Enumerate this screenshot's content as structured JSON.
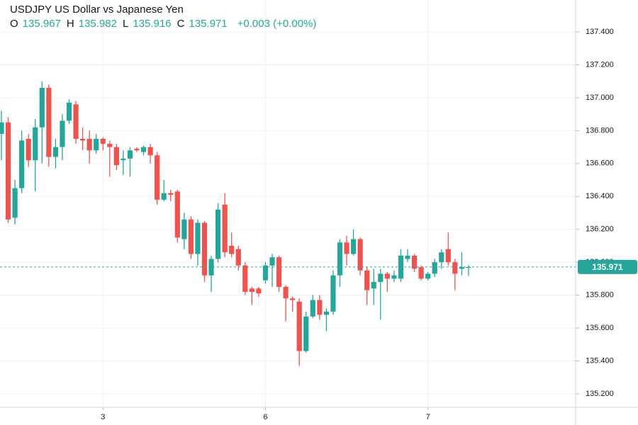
{
  "chart_data": {
    "type": "candlestick",
    "title": "USDJPY US Dollar vs Japanese Yen",
    "ohlc_labels": [
      "O",
      "H",
      "L",
      "C"
    ],
    "change_label": "+0.003 (+0.00%)",
    "categories": [
      null,
      null,
      null,
      null,
      null,
      null,
      null,
      null,
      null,
      null,
      null,
      null,
      null,
      null,
      null,
      "3",
      null,
      null,
      null,
      null,
      null,
      null,
      null,
      null,
      null,
      null,
      null,
      null,
      null,
      null,
      null,
      null,
      null,
      null,
      null,
      null,
      null,
      null,
      null,
      "6",
      null,
      null,
      null,
      null,
      null,
      null,
      null,
      null,
      null,
      null,
      null,
      null,
      null,
      null,
      null,
      null,
      null,
      null,
      null,
      null,
      null,
      null,
      null,
      "7",
      null,
      null,
      null,
      null,
      null,
      null
    ],
    "open": [
      136.78,
      136.85,
      136.27,
      136.45,
      136.75,
      136.62,
      136.82,
      137.06,
      136.64,
      136.7,
      136.86,
      136.96,
      136.75,
      136.75,
      136.68,
      136.75,
      136.72,
      136.7,
      136.62,
      136.63,
      136.69,
      136.67,
      136.7,
      136.65,
      136.38,
      136.42,
      136.43,
      136.14,
      136.26,
      136.05,
      136.24,
      135.92,
      136.02,
      136.35,
      136.1,
      136.08,
      135.98,
      135.84,
      135.84,
      135.89,
      135.98,
      136.03,
      135.85,
      135.78,
      135.76,
      135.46,
      135.67,
      135.77,
      135.68,
      135.7,
      135.92,
      136.12,
      136.05,
      136.14,
      135.95,
      135.84,
      135.88,
      135.93,
      135.9,
      135.9,
      136.02,
      136.04,
      135.97,
      135.9,
      135.93,
      136.0,
      136.08,
      136.0,
      135.96,
      135.967
    ],
    "high": [
      136.92,
      136.88,
      136.5,
      136.8,
      136.78,
      136.87,
      137.1,
      137.08,
      136.75,
      136.9,
      136.99,
      136.98,
      136.82,
      136.8,
      136.78,
      136.76,
      136.74,
      136.72,
      136.68,
      136.7,
      136.7,
      136.71,
      136.72,
      136.67,
      136.5,
      136.44,
      136.44,
      136.3,
      136.28,
      136.26,
      136.25,
      136.04,
      136.36,
      136.42,
      136.18,
      136.1,
      136.0,
      135.85,
      135.85,
      136.0,
      136.05,
      136.04,
      135.86,
      135.79,
      135.78,
      135.7,
      135.8,
      135.8,
      135.72,
      135.95,
      136.14,
      136.16,
      136.2,
      136.15,
      135.97,
      135.96,
      135.96,
      135.94,
      135.95,
      136.08,
      136.08,
      136.05,
      135.98,
      135.94,
      136.02,
      136.08,
      136.18,
      136.02,
      136.06,
      135.982
    ],
    "low": [
      136.62,
      136.24,
      136.23,
      136.42,
      136.58,
      136.43,
      136.6,
      136.58,
      136.57,
      136.62,
      136.84,
      136.72,
      136.68,
      136.6,
      136.66,
      136.68,
      136.52,
      136.56,
      136.53,
      136.52,
      136.67,
      136.65,
      136.6,
      136.35,
      136.37,
      136.37,
      136.12,
      136.08,
      136.02,
      135.98,
      135.88,
      135.82,
      136.0,
      136.03,
      136.03,
      135.95,
      135.8,
      135.74,
      135.79,
      135.87,
      135.85,
      135.82,
      135.64,
      135.7,
      135.37,
      135.45,
      135.66,
      135.65,
      135.58,
      135.68,
      135.85,
      135.98,
      136.04,
      135.92,
      135.74,
      135.74,
      135.65,
      135.82,
      135.88,
      135.88,
      136.0,
      135.94,
      135.89,
      135.89,
      135.91,
      135.96,
      135.98,
      135.83,
      135.92,
      135.916
    ],
    "close": [
      136.85,
      136.26,
      136.45,
      136.74,
      136.62,
      136.82,
      137.06,
      136.64,
      136.7,
      136.86,
      136.97,
      136.75,
      136.74,
      136.68,
      136.75,
      136.72,
      136.7,
      136.59,
      136.63,
      136.68,
      136.68,
      136.7,
      136.65,
      136.38,
      136.42,
      136.41,
      136.15,
      136.26,
      136.05,
      136.24,
      135.92,
      136.02,
      136.32,
      136.06,
      136.05,
      135.98,
      135.82,
      135.82,
      135.81,
      135.98,
      136.03,
      135.85,
      135.78,
      135.77,
      135.46,
      135.67,
      135.77,
      135.68,
      135.7,
      135.92,
      136.12,
      136.05,
      136.14,
      135.95,
      135.83,
      135.88,
      135.93,
      135.9,
      135.92,
      136.04,
      136.04,
      135.96,
      135.9,
      135.93,
      136.0,
      136.06,
      136.0,
      135.93,
      135.97,
      135.971
    ],
    "up_color": "#26a69a",
    "down_color": "#ef5350",
    "ylim": [
      135.118,
      137.594
    ],
    "yticks": [
      {
        "value": 135.2,
        "label": "135.200"
      },
      {
        "value": 135.4,
        "label": "135.400"
      },
      {
        "value": 135.6,
        "label": "135.600"
      },
      {
        "value": 135.8,
        "label": "135.800"
      },
      {
        "value": 136.0,
        "label": "136.000"
      },
      {
        "value": 136.2,
        "label": "136.200"
      },
      {
        "value": 136.4,
        "label": "136.400"
      },
      {
        "value": 136.6,
        "label": "136.600"
      },
      {
        "value": 136.8,
        "label": "136.800"
      },
      {
        "value": 137.0,
        "label": "137.000"
      },
      {
        "value": 137.2,
        "label": "137.200"
      },
      {
        "value": 137.4,
        "label": "137.400"
      }
    ],
    "grid": true
  }
}
